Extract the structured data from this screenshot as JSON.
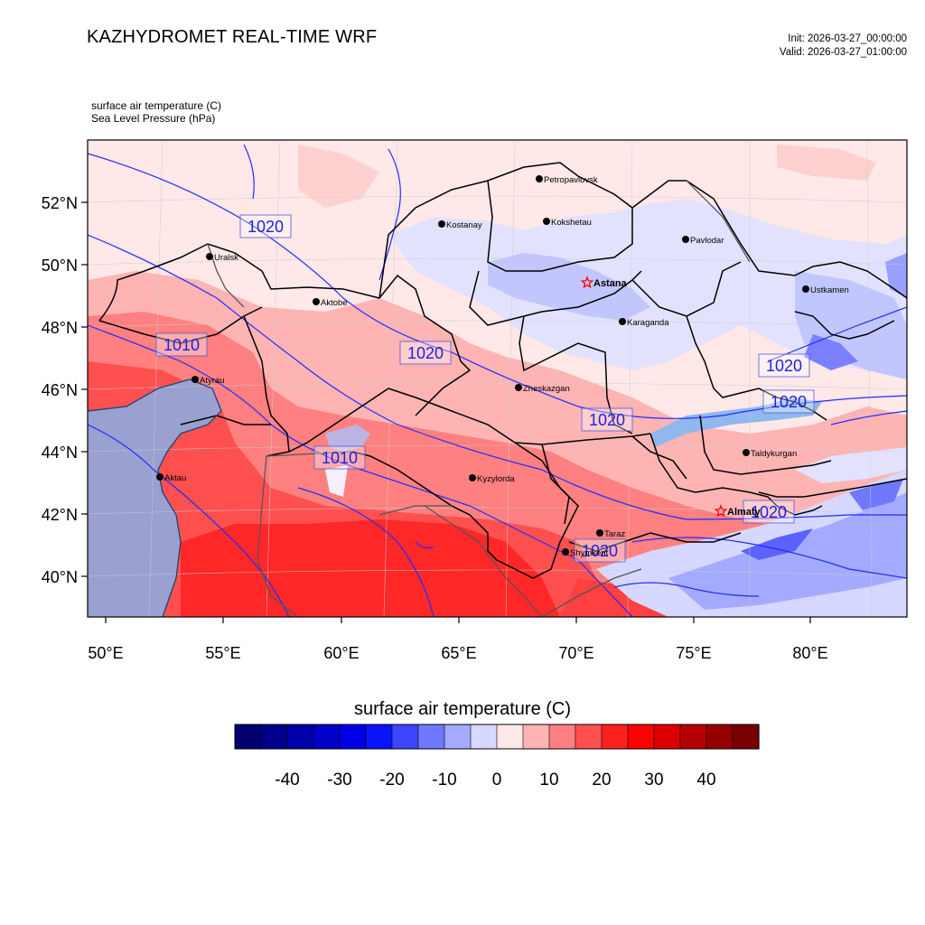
{
  "header": {
    "title": "KAZHYDROMET REAL-TIME WRF",
    "init": "Init: 2026-03-27_00:00:00",
    "valid": "Valid: 2026-03-27_01:00:00",
    "var1": "surface air temperature   (C)",
    "var2": "Sea Level Pressure   (hPa)"
  },
  "axes": {
    "lat_labels": [
      "52°N",
      "50°N",
      "48°N",
      "46°N",
      "44°N",
      "42°N",
      "40°N"
    ],
    "lon_labels": [
      "50°E",
      "55°E",
      "60°E",
      "65°E",
      "70°E",
      "75°E",
      "80°E"
    ]
  },
  "cities": [
    {
      "name": "Petropavlovsk",
      "star": false
    },
    {
      "name": "Kostanay",
      "star": false
    },
    {
      "name": "Kokshetau",
      "star": false
    },
    {
      "name": "Pavlodar",
      "star": false
    },
    {
      "name": "Uralsk",
      "star": false
    },
    {
      "name": "Astana",
      "star": true
    },
    {
      "name": "Aktobe",
      "star": false
    },
    {
      "name": "Ustkamen",
      "star": false
    },
    {
      "name": "Karaganda",
      "star": false
    },
    {
      "name": "Atyrau",
      "star": false
    },
    {
      "name": "Zheskazgan",
      "star": false
    },
    {
      "name": "Taldykurgan",
      "star": false
    },
    {
      "name": "Aktau",
      "star": false
    },
    {
      "name": "Kyzylorda",
      "star": false
    },
    {
      "name": "Almaty",
      "star": true
    },
    {
      "name": "Taraz",
      "star": false
    },
    {
      "name": "Shymkent",
      "star": false
    }
  ],
  "isobars": [
    "1020",
    "1010",
    "1020",
    "1020",
    "1020",
    "1020",
    "1010",
    "1020",
    "1020"
  ],
  "colorbar": {
    "title": "surface air temperature  (C)",
    "tick_labels": [
      "-40",
      "-30",
      "-20",
      "-10",
      "0",
      "10",
      "20",
      "30",
      "40"
    ],
    "colors": [
      "#00006e",
      "#00008c",
      "#0000aa",
      "#0000c8",
      "#0000e6",
      "#0a14ff",
      "#3c46ff",
      "#7078ff",
      "#a4aaff",
      "#d6d8ff",
      "#ffe8e8",
      "#ffb4b4",
      "#ff8080",
      "#ff5050",
      "#ff2020",
      "#ff0000",
      "#dc0000",
      "#b40000",
      "#960000",
      "#780000"
    ]
  }
}
